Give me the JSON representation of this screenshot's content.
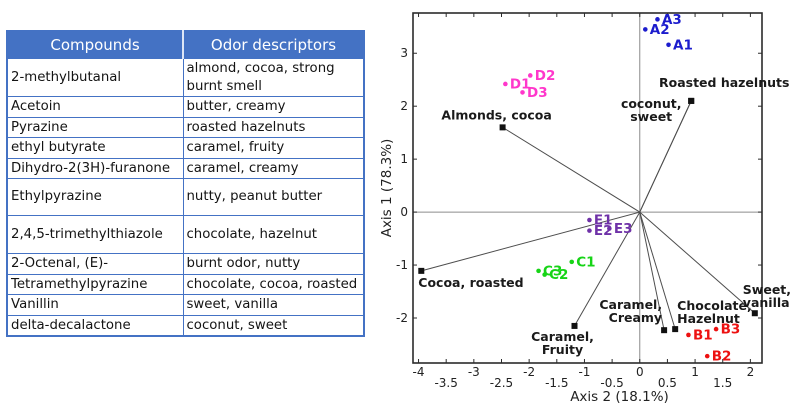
{
  "table": {
    "headers": [
      "Compounds",
      "Odor descriptors"
    ],
    "header_bg": "#4472C4",
    "border_color": "#4472C4",
    "rows": [
      [
        "2-methylbutanal",
        "almond, cocoa, strong burnt smell"
      ],
      [
        "Acetoin",
        "butter, creamy"
      ],
      [
        "Pyrazine",
        "roasted hazelnuts"
      ],
      [
        "ethyl butyrate",
        "caramel, fruity"
      ],
      [
        "Dihydro-2(3H)-furanone",
        "caramel, creamy"
      ],
      [
        "Ethylpyrazine",
        "nutty, peanut butter"
      ],
      [
        "2,4,5-trimethylthiazole",
        "chocolate, hazelnut"
      ],
      [
        "2-Octenal, (E)-",
        "burnt odor, nutty"
      ],
      [
        "Tetramethylpyrazine",
        "chocolate, cocoa, roasted"
      ],
      [
        "Vanillin",
        "sweet, vanilla"
      ],
      [
        "delta-decalactone",
        "coconut, sweet"
      ]
    ]
  },
  "chart_data": {
    "type": "scatter",
    "subtype": "pca-biplot",
    "xlabel": "Axis 2 (18.1%)",
    "ylabel": "Axis 1 (78.3%)",
    "xlim": [
      -4.1,
      2.21
    ],
    "ylim": [
      -2.85,
      3.76
    ],
    "x_ticks": [
      -4,
      -3.5,
      -3,
      -2.5,
      -2,
      -1.5,
      -1,
      -0.5,
      0,
      0.5,
      1,
      1.5,
      2
    ],
    "y_ticks": [
      -2,
      -1,
      0,
      1,
      2,
      3
    ],
    "grid": "zero-lines-only",
    "legend": "none",
    "colors": {
      "frame": "#2b2b2b",
      "zero_line": "#8c8c8c",
      "vector_line": "#4d4d4d",
      "vector_marker": "#111111",
      "vector_label": "#1a1a1a",
      "tick_text": "#222222",
      "axis_text": "#222222"
    },
    "series": [
      {
        "name": "A",
        "color": "#1c1ccd",
        "points": [
          {
            "label": "A1",
            "x": 0.52,
            "y": 3.16
          },
          {
            "label": "A2",
            "x": 0.1,
            "y": 3.45
          },
          {
            "label": "A3",
            "x": 0.32,
            "y": 3.64
          }
        ]
      },
      {
        "name": "B",
        "color": "#ed1111",
        "points": [
          {
            "label": "B1",
            "x": 0.88,
            "y": -2.32
          },
          {
            "label": "B2",
            "x": 1.22,
            "y": -2.72
          },
          {
            "label": "B3",
            "x": 1.38,
            "y": -2.21
          }
        ]
      },
      {
        "name": "C",
        "color": "#17d417",
        "points": [
          {
            "label": "C1",
            "x": -1.23,
            "y": -0.94
          },
          {
            "label": "C2",
            "x": -1.72,
            "y": -1.18
          },
          {
            "label": "C3",
            "x": -1.83,
            "y": -1.11
          }
        ]
      },
      {
        "name": "D",
        "color": "#ff37cb",
        "points": [
          {
            "label": "D1",
            "x": -2.43,
            "y": 2.42
          },
          {
            "label": "D2",
            "x": -1.98,
            "y": 2.58
          },
          {
            "label": "D3",
            "x": -2.12,
            "y": 2.26
          }
        ]
      },
      {
        "name": "E",
        "color": "#6f32a8",
        "points": [
          {
            "label": "E1",
            "x": -0.91,
            "y": -0.15
          },
          {
            "label": "E2",
            "x": -0.91,
            "y": -0.35
          },
          {
            "label": "E3",
            "x": -0.55,
            "y": -0.31
          }
        ]
      }
    ],
    "vectors": [
      {
        "label": "Almonds, cocoa",
        "x": -2.48,
        "y": 1.6,
        "label_lines": [
          "Almonds, cocoa"
        ],
        "label_anchor": "middle",
        "label_dx": -6,
        "label_dy": -8
      },
      {
        "label": "Roasted hazelnuts",
        "x": 0.93,
        "y": 2.1,
        "label_lines": [
          "Roasted hazelnuts"
        ],
        "label_anchor": "middle",
        "label_dx": 33,
        "label_dy": -14
      },
      {
        "label": "coconut, sweet",
        "x": 0.93,
        "y": 2.1,
        "label_lines": [
          "coconut,",
          "sweet"
        ],
        "label_anchor": "middle",
        "label_dx": -40,
        "label_dy": 7
      },
      {
        "label": "Cocoa, roasted",
        "x": -3.95,
        "y": -1.11,
        "label_lines": [
          "Cocoa, roasted"
        ],
        "label_anchor": "start",
        "label_dx": -3,
        "label_dy": 16
      },
      {
        "label": "Caramel, Fruity",
        "x": -1.18,
        "y": -2.15,
        "label_lines": [
          "Caramel,",
          "Fruity"
        ],
        "label_anchor": "middle",
        "label_dx": -12,
        "label_dy": 15
      },
      {
        "label": "Caramel, Creamy",
        "x": 0.44,
        "y": -2.23,
        "label_lines": [
          "Caramel,",
          "Creamy"
        ],
        "label_anchor": "end",
        "label_dx": -2,
        "label_dy": -21
      },
      {
        "label": "Chocolate, Hazelnut",
        "x": 0.64,
        "y": -2.21,
        "label_lines": [
          "Chocolate,",
          "Hazelnut"
        ],
        "label_anchor": "start",
        "label_dx": 2,
        "label_dy": -19
      },
      {
        "label": "Sweet, vanilla",
        "x": 2.08,
        "y": -1.91,
        "label_lines": [
          "Sweet,",
          "vanilla"
        ],
        "label_anchor": "start",
        "label_dx": -12,
        "label_dy": -19
      }
    ]
  }
}
